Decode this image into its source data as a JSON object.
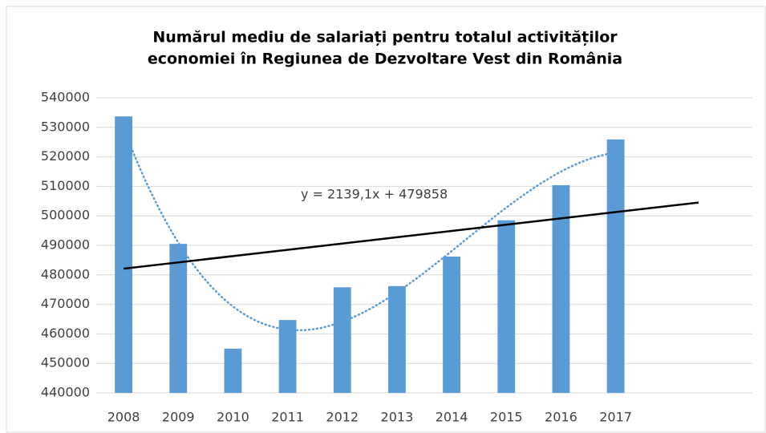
{
  "chart_data": {
    "type": "bar",
    "title": [
      "Numărul mediu de salariați pentru totalul activităților",
      "economiei în Regiunea de Dezvoltare Vest din România"
    ],
    "categories": [
      "2008",
      "2009",
      "2010",
      "2011",
      "2012",
      "2013",
      "2014",
      "2015",
      "2016",
      "2017",
      null,
      null
    ],
    "values": [
      533700,
      490500,
      455000,
      464700,
      475800,
      476200,
      486200,
      498500,
      510400,
      525900,
      null,
      null
    ],
    "color": "#5b9bd5",
    "ylim": [
      440000,
      540000
    ],
    "yticks": [
      440000,
      450000,
      460000,
      470000,
      480000,
      490000,
      500000,
      510000,
      520000,
      530000,
      540000
    ],
    "grid": true,
    "annotation": "y = 2139,1x + 479858",
    "linear_trendline_color": "#000000",
    "poly_trendline_color": "#5b9bd5"
  }
}
